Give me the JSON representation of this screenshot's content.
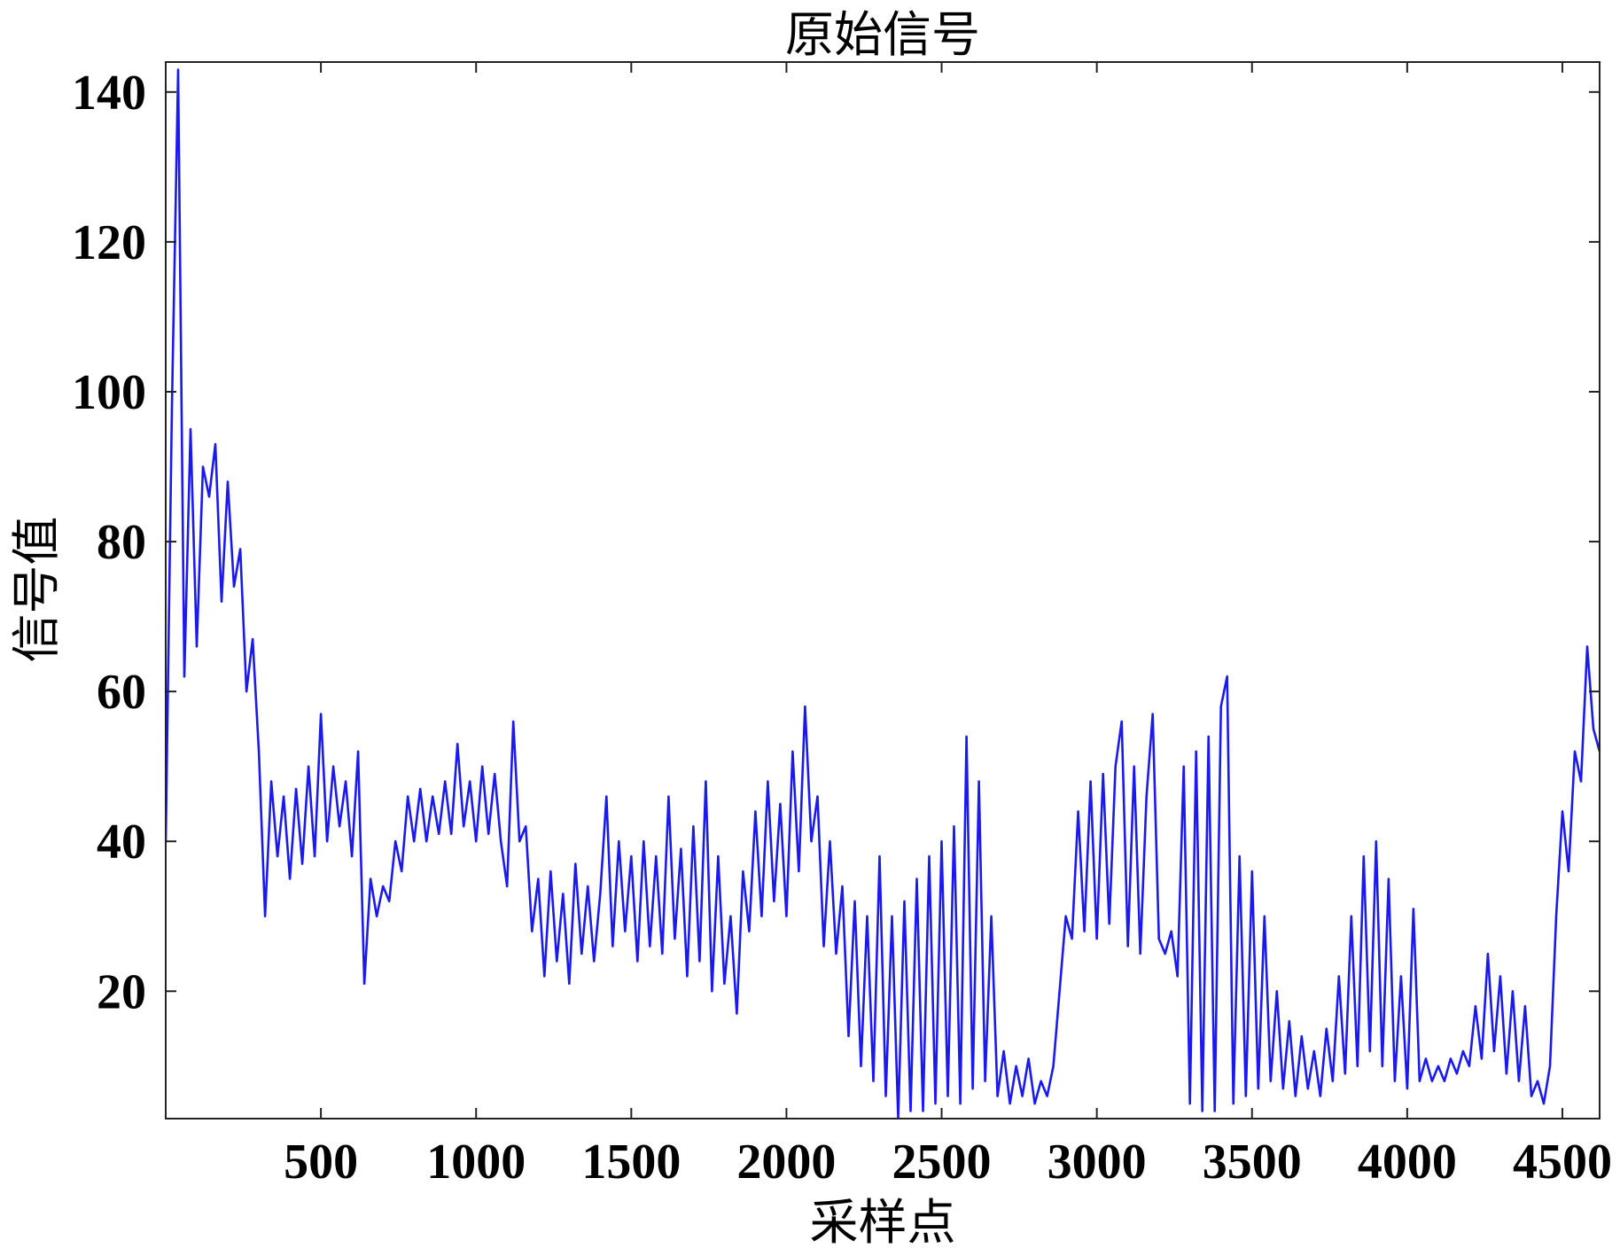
{
  "chart_data": {
    "type": "line",
    "title": "原始信号",
    "xlabel": "采样点",
    "ylabel": "信号值",
    "xlim": [
      0,
      4620
    ],
    "ylim": [
      3,
      144
    ],
    "xticks": [
      500,
      1000,
      1500,
      2000,
      2500,
      3000,
      3500,
      4000,
      4500
    ],
    "yticks": [
      20,
      40,
      60,
      80,
      100,
      120,
      140
    ],
    "grid": false,
    "series": [
      {
        "color": "#1a1aee",
        "x": [
          0,
          20,
          40,
          60,
          80,
          100,
          120,
          140,
          160,
          180,
          200,
          220,
          240,
          260,
          280,
          300,
          320,
          340,
          360,
          380,
          400,
          420,
          440,
          460,
          480,
          500,
          520,
          540,
          560,
          580,
          600,
          620,
          640,
          660,
          680,
          700,
          720,
          740,
          760,
          780,
          800,
          820,
          840,
          860,
          880,
          900,
          920,
          940,
          960,
          980,
          1000,
          1020,
          1040,
          1060,
          1080,
          1100,
          1120,
          1140,
          1160,
          1180,
          1200,
          1220,
          1240,
          1260,
          1280,
          1300,
          1320,
          1340,
          1360,
          1380,
          1400,
          1420,
          1440,
          1460,
          1480,
          1500,
          1520,
          1540,
          1560,
          1580,
          1600,
          1620,
          1640,
          1660,
          1680,
          1700,
          1720,
          1740,
          1760,
          1780,
          1800,
          1820,
          1840,
          1860,
          1880,
          1900,
          1920,
          1940,
          1960,
          1980,
          2000,
          2020,
          2040,
          2060,
          2080,
          2100,
          2120,
          2140,
          2160,
          2180,
          2200,
          2220,
          2240,
          2260,
          2280,
          2300,
          2320,
          2340,
          2360,
          2380,
          2400,
          2420,
          2440,
          2460,
          2480,
          2500,
          2520,
          2540,
          2560,
          2580,
          2600,
          2620,
          2640,
          2660,
          2680,
          2700,
          2720,
          2740,
          2760,
          2780,
          2800,
          2820,
          2840,
          2860,
          2880,
          2900,
          2920,
          2940,
          2960,
          2980,
          3000,
          3020,
          3040,
          3060,
          3080,
          3100,
          3120,
          3140,
          3160,
          3180,
          3200,
          3220,
          3240,
          3260,
          3280,
          3300,
          3320,
          3340,
          3360,
          3380,
          3400,
          3420,
          3440,
          3460,
          3480,
          3500,
          3520,
          3540,
          3560,
          3580,
          3600,
          3620,
          3640,
          3660,
          3680,
          3700,
          3720,
          3740,
          3760,
          3780,
          3800,
          3820,
          3840,
          3860,
          3880,
          3900,
          3920,
          3940,
          3960,
          3980,
          4000,
          4020,
          4040,
          4060,
          4080,
          4100,
          4120,
          4140,
          4160,
          4180,
          4200,
          4220,
          4240,
          4260,
          4280,
          4300,
          4320,
          4340,
          4360,
          4380,
          4400,
          4420,
          4440,
          4460,
          4480,
          4500,
          4520,
          4540,
          4560,
          4580,
          4600,
          4620
        ],
        "y": [
          40,
          98,
          143,
          62,
          95,
          66,
          90,
          86,
          93,
          72,
          88,
          74,
          79,
          60,
          67,
          52,
          30,
          48,
          38,
          46,
          35,
          47,
          37,
          50,
          38,
          57,
          40,
          50,
          42,
          48,
          38,
          52,
          21,
          35,
          30,
          34,
          32,
          40,
          36,
          46,
          40,
          47,
          40,
          46,
          41,
          48,
          41,
          53,
          42,
          48,
          40,
          50,
          41,
          49,
          40,
          34,
          56,
          40,
          42,
          28,
          35,
          22,
          36,
          24,
          33,
          21,
          37,
          25,
          34,
          24,
          33,
          46,
          26,
          40,
          28,
          38,
          24,
          40,
          26,
          38,
          25,
          46,
          27,
          39,
          22,
          42,
          24,
          48,
          20,
          38,
          21,
          30,
          17,
          36,
          28,
          44,
          30,
          48,
          32,
          45,
          30,
          52,
          36,
          58,
          40,
          46,
          26,
          40,
          25,
          34,
          14,
          32,
          10,
          30,
          8,
          38,
          6,
          30,
          3,
          32,
          4,
          35,
          4,
          38,
          5,
          40,
          6,
          42,
          5,
          54,
          7,
          48,
          8,
          30,
          6,
          12,
          5,
          10,
          6,
          11,
          5,
          8,
          6,
          10,
          20,
          30,
          27,
          44,
          28,
          48,
          27,
          49,
          29,
          50,
          56,
          26,
          50,
          25,
          46,
          57,
          27,
          25,
          28,
          22,
          50,
          5,
          52,
          4,
          54,
          4,
          58,
          62,
          5,
          38,
          6,
          36,
          7,
          30,
          8,
          20,
          7,
          16,
          6,
          14,
          7,
          12,
          6,
          15,
          8,
          22,
          9,
          30,
          10,
          38,
          12,
          40,
          10,
          35,
          8,
          22,
          7,
          31,
          8,
          11,
          8,
          10,
          8,
          11,
          9,
          12,
          10,
          18,
          11,
          25,
          12,
          22,
          9,
          20,
          8,
          18,
          6,
          8,
          5,
          10,
          30,
          44,
          36,
          52,
          48,
          66,
          55,
          52
        ]
      }
    ]
  }
}
